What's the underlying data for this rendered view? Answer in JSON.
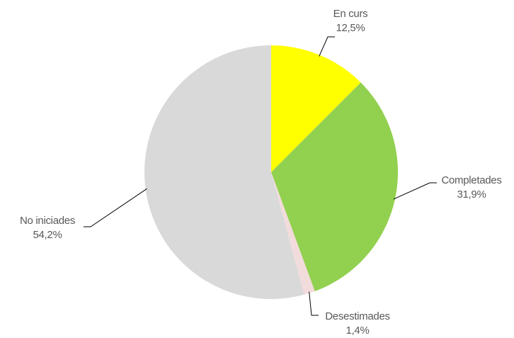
{
  "chart_data": {
    "type": "pie",
    "categories": [
      "En curs",
      "Completades",
      "Desestimades",
      "No iniciades"
    ],
    "values": [
      12.5,
      31.9,
      1.4,
      54.2
    ],
    "value_labels": [
      "12,5%",
      "31,9%",
      "1,4%",
      "54,2%"
    ],
    "colors": [
      "#ffff00",
      "#92d050",
      "#f2dcdb",
      "#d9d9d9"
    ]
  }
}
